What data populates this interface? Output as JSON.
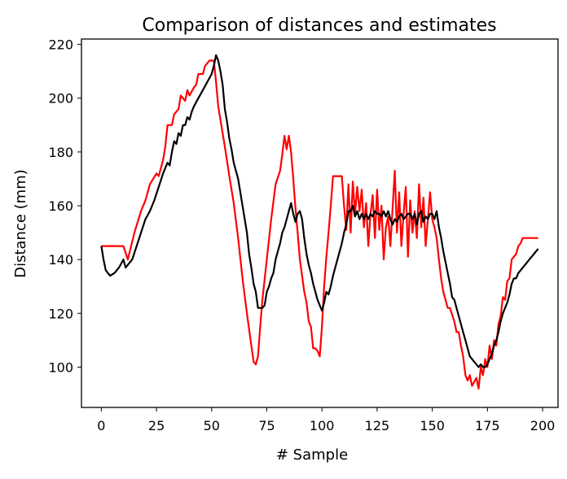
{
  "chart_data": {
    "type": "line",
    "title": "Comparison of distances and estimates",
    "xlabel": "# Sample",
    "ylabel": "Distance (mm)",
    "xlim": [
      -9,
      207
    ],
    "ylim": [
      85,
      222
    ],
    "xticks": [
      0,
      25,
      50,
      75,
      100,
      125,
      150,
      175,
      200
    ],
    "yticks": [
      100,
      120,
      140,
      160,
      180,
      200,
      220
    ],
    "grid": false,
    "legend": "none",
    "series": [
      {
        "color": "#ff0000",
        "points": [
          [
            0,
            145
          ],
          [
            10,
            145
          ],
          [
            12,
            140
          ],
          [
            15,
            150
          ],
          [
            18,
            158
          ],
          [
            20,
            162
          ],
          [
            22,
            168
          ],
          [
            25,
            172
          ],
          [
            26,
            171
          ],
          [
            28,
            177
          ],
          [
            29,
            182
          ],
          [
            30,
            190
          ],
          [
            32,
            190
          ],
          [
            33,
            194
          ],
          [
            35,
            196
          ],
          [
            36,
            201
          ],
          [
            38,
            199
          ],
          [
            39,
            203
          ],
          [
            40,
            201
          ],
          [
            42,
            204
          ],
          [
            43,
            205
          ],
          [
            44,
            209
          ],
          [
            46,
            209
          ],
          [
            47,
            212
          ],
          [
            49,
            214
          ],
          [
            51,
            214
          ],
          [
            52,
            206
          ],
          [
            53,
            197
          ],
          [
            54,
            192
          ],
          [
            56,
            182
          ],
          [
            58,
            171
          ],
          [
            60,
            161
          ],
          [
            62,
            148
          ],
          [
            64,
            133
          ],
          [
            66,
            120
          ],
          [
            68,
            108
          ],
          [
            69,
            102
          ],
          [
            70,
            101
          ],
          [
            71,
            104
          ],
          [
            72,
            115
          ],
          [
            73,
            125
          ],
          [
            75,
            140
          ],
          [
            77,
            155
          ],
          [
            79,
            168
          ],
          [
            81,
            173
          ],
          [
            82,
            179
          ],
          [
            83,
            186
          ],
          [
            84,
            181
          ],
          [
            85,
            186
          ],
          [
            86,
            180
          ],
          [
            87,
            170
          ],
          [
            88,
            159
          ],
          [
            89,
            150
          ],
          [
            90,
            140
          ],
          [
            91,
            134
          ],
          [
            92,
            128
          ],
          [
            93,
            124
          ],
          [
            94,
            117
          ],
          [
            95,
            115
          ],
          [
            96,
            107
          ],
          [
            97,
            107
          ],
          [
            98,
            106
          ],
          [
            99,
            104
          ],
          [
            100,
            115
          ],
          [
            101,
            130
          ],
          [
            102,
            141
          ],
          [
            103,
            150
          ],
          [
            104,
            160
          ],
          [
            105,
            171
          ],
          [
            109,
            171
          ],
          [
            110,
            160
          ],
          [
            111,
            151
          ],
          [
            112,
            168
          ],
          [
            113,
            150
          ],
          [
            114,
            169
          ],
          [
            115,
            157
          ],
          [
            116,
            167
          ],
          [
            117,
            158
          ],
          [
            118,
            166
          ],
          [
            119,
            152
          ],
          [
            120,
            161
          ],
          [
            121,
            145
          ],
          [
            122,
            157
          ],
          [
            123,
            164
          ],
          [
            124,
            148
          ],
          [
            125,
            166
          ],
          [
            126,
            151
          ],
          [
            127,
            160
          ],
          [
            128,
            140
          ],
          [
            129,
            152
          ],
          [
            130,
            156
          ],
          [
            131,
            145
          ],
          [
            132,
            159
          ],
          [
            133,
            173
          ],
          [
            134,
            150
          ],
          [
            135,
            165
          ],
          [
            136,
            145
          ],
          [
            137,
            157
          ],
          [
            138,
            167
          ],
          [
            139,
            141
          ],
          [
            140,
            162
          ],
          [
            141,
            150
          ],
          [
            142,
            158
          ],
          [
            143,
            148
          ],
          [
            144,
            168
          ],
          [
            145,
            152
          ],
          [
            146,
            163
          ],
          [
            147,
            145
          ],
          [
            148,
            155
          ],
          [
            149,
            165
          ],
          [
            150,
            155
          ],
          [
            151,
            152
          ],
          [
            152,
            148
          ],
          [
            153,
            140
          ],
          [
            154,
            133
          ],
          [
            155,
            128
          ],
          [
            157,
            122
          ],
          [
            158,
            122
          ],
          [
            160,
            117
          ],
          [
            161,
            113
          ],
          [
            162,
            113
          ],
          [
            163,
            108
          ],
          [
            164,
            104
          ],
          [
            165,
            97
          ],
          [
            166,
            95
          ],
          [
            167,
            97
          ],
          [
            168,
            93
          ],
          [
            170,
            96
          ],
          [
            171,
            92
          ],
          [
            172,
            100
          ],
          [
            173,
            97
          ],
          [
            174,
            103
          ],
          [
            175,
            100
          ],
          [
            176,
            108
          ],
          [
            177,
            103
          ],
          [
            178,
            110
          ],
          [
            179,
            108
          ],
          [
            180,
            116
          ],
          [
            181,
            119
          ],
          [
            182,
            126
          ],
          [
            183,
            125
          ],
          [
            184,
            132
          ],
          [
            185,
            133
          ],
          [
            186,
            140
          ],
          [
            188,
            142
          ],
          [
            189,
            145
          ],
          [
            190,
            146
          ],
          [
            191,
            148
          ],
          [
            198,
            148
          ]
        ]
      },
      {
        "color": "#000000",
        "points": [
          [
            0,
            145
          ],
          [
            1,
            140
          ],
          [
            2,
            136
          ],
          [
            4,
            134
          ],
          [
            6,
            135
          ],
          [
            8,
            137
          ],
          [
            10,
            140
          ],
          [
            11,
            137
          ],
          [
            14,
            140
          ],
          [
            16,
            145
          ],
          [
            18,
            150
          ],
          [
            20,
            155
          ],
          [
            22,
            158
          ],
          [
            24,
            162
          ],
          [
            26,
            167
          ],
          [
            28,
            172
          ],
          [
            30,
            176
          ],
          [
            31,
            175
          ],
          [
            32,
            180
          ],
          [
            33,
            184
          ],
          [
            34,
            183
          ],
          [
            35,
            187
          ],
          [
            36,
            186
          ],
          [
            37,
            190
          ],
          [
            38,
            190
          ],
          [
            39,
            193
          ],
          [
            40,
            192
          ],
          [
            41,
            195
          ],
          [
            42,
            197
          ],
          [
            44,
            200
          ],
          [
            46,
            203
          ],
          [
            48,
            206
          ],
          [
            50,
            209
          ],
          [
            51,
            212
          ],
          [
            52,
            216
          ],
          [
            53,
            214
          ],
          [
            54,
            210
          ],
          [
            55,
            205
          ],
          [
            56,
            196
          ],
          [
            57,
            191
          ],
          [
            58,
            185
          ],
          [
            59,
            181
          ],
          [
            60,
            176
          ],
          [
            62,
            170
          ],
          [
            64,
            160
          ],
          [
            66,
            150
          ],
          [
            67,
            142
          ],
          [
            68,
            137
          ],
          [
            69,
            131
          ],
          [
            70,
            128
          ],
          [
            71,
            122
          ],
          [
            72,
            122
          ],
          [
            73,
            122
          ],
          [
            74,
            123
          ],
          [
            75,
            128
          ],
          [
            76,
            130
          ],
          [
            77,
            133
          ],
          [
            78,
            135
          ],
          [
            79,
            140
          ],
          [
            80,
            143
          ],
          [
            81,
            146
          ],
          [
            82,
            150
          ],
          [
            83,
            152
          ],
          [
            84,
            155
          ],
          [
            85,
            158
          ],
          [
            86,
            161
          ],
          [
            87,
            157
          ],
          [
            88,
            154
          ],
          [
            89,
            157
          ],
          [
            90,
            158
          ],
          [
            91,
            155
          ],
          [
            92,
            148
          ],
          [
            93,
            142
          ],
          [
            94,
            138
          ],
          [
            95,
            135
          ],
          [
            96,
            131
          ],
          [
            97,
            128
          ],
          [
            98,
            125
          ],
          [
            99,
            123
          ],
          [
            100,
            121
          ],
          [
            101,
            124
          ],
          [
            102,
            128
          ],
          [
            103,
            127
          ],
          [
            104,
            130
          ],
          [
            105,
            134
          ],
          [
            106,
            137
          ],
          [
            107,
            140
          ],
          [
            108,
            143
          ],
          [
            109,
            146
          ],
          [
            110,
            150
          ],
          [
            111,
            153
          ],
          [
            112,
            158
          ],
          [
            113,
            158
          ],
          [
            114,
            160
          ],
          [
            115,
            156
          ],
          [
            116,
            158
          ],
          [
            117,
            155
          ],
          [
            118,
            157
          ],
          [
            119,
            155
          ],
          [
            120,
            157
          ],
          [
            121,
            155
          ],
          [
            122,
            157
          ],
          [
            123,
            156
          ],
          [
            124,
            158
          ],
          [
            125,
            157
          ],
          [
            126,
            157
          ],
          [
            127,
            156
          ],
          [
            128,
            158
          ],
          [
            129,
            156
          ],
          [
            130,
            158
          ],
          [
            131,
            155
          ],
          [
            132,
            153
          ],
          [
            133,
            155
          ],
          [
            134,
            154
          ],
          [
            135,
            156
          ],
          [
            136,
            157
          ],
          [
            137,
            155
          ],
          [
            138,
            156
          ],
          [
            139,
            157
          ],
          [
            140,
            157
          ],
          [
            141,
            155
          ],
          [
            142,
            157
          ],
          [
            143,
            153
          ],
          [
            144,
            157
          ],
          [
            145,
            158
          ],
          [
            146,
            154
          ],
          [
            147,
            156
          ],
          [
            148,
            155
          ],
          [
            149,
            157
          ],
          [
            150,
            157
          ],
          [
            151,
            155
          ],
          [
            152,
            158
          ],
          [
            153,
            152
          ],
          [
            154,
            148
          ],
          [
            155,
            143
          ],
          [
            156,
            139
          ],
          [
            157,
            135
          ],
          [
            158,
            131
          ],
          [
            159,
            126
          ],
          [
            160,
            125
          ],
          [
            161,
            122
          ],
          [
            162,
            119
          ],
          [
            163,
            116
          ],
          [
            164,
            113
          ],
          [
            165,
            110
          ],
          [
            166,
            107
          ],
          [
            167,
            104
          ],
          [
            168,
            103
          ],
          [
            169,
            102
          ],
          [
            170,
            101
          ],
          [
            171,
            100
          ],
          [
            172,
            101
          ],
          [
            173,
            100
          ],
          [
            174,
            100
          ],
          [
            175,
            101
          ],
          [
            176,
            103
          ],
          [
            177,
            105
          ],
          [
            178,
            108
          ],
          [
            179,
            110
          ],
          [
            180,
            113
          ],
          [
            181,
            117
          ],
          [
            182,
            120
          ],
          [
            183,
            122
          ],
          [
            184,
            124
          ],
          [
            185,
            127
          ],
          [
            186,
            131
          ],
          [
            187,
            133
          ],
          [
            188,
            133
          ],
          [
            189,
            135
          ],
          [
            190,
            136
          ],
          [
            191,
            137
          ],
          [
            192,
            138
          ],
          [
            193,
            139
          ],
          [
            194,
            140
          ],
          [
            195,
            141
          ],
          [
            196,
            142
          ],
          [
            197,
            143
          ],
          [
            198,
            144
          ]
        ]
      }
    ]
  }
}
